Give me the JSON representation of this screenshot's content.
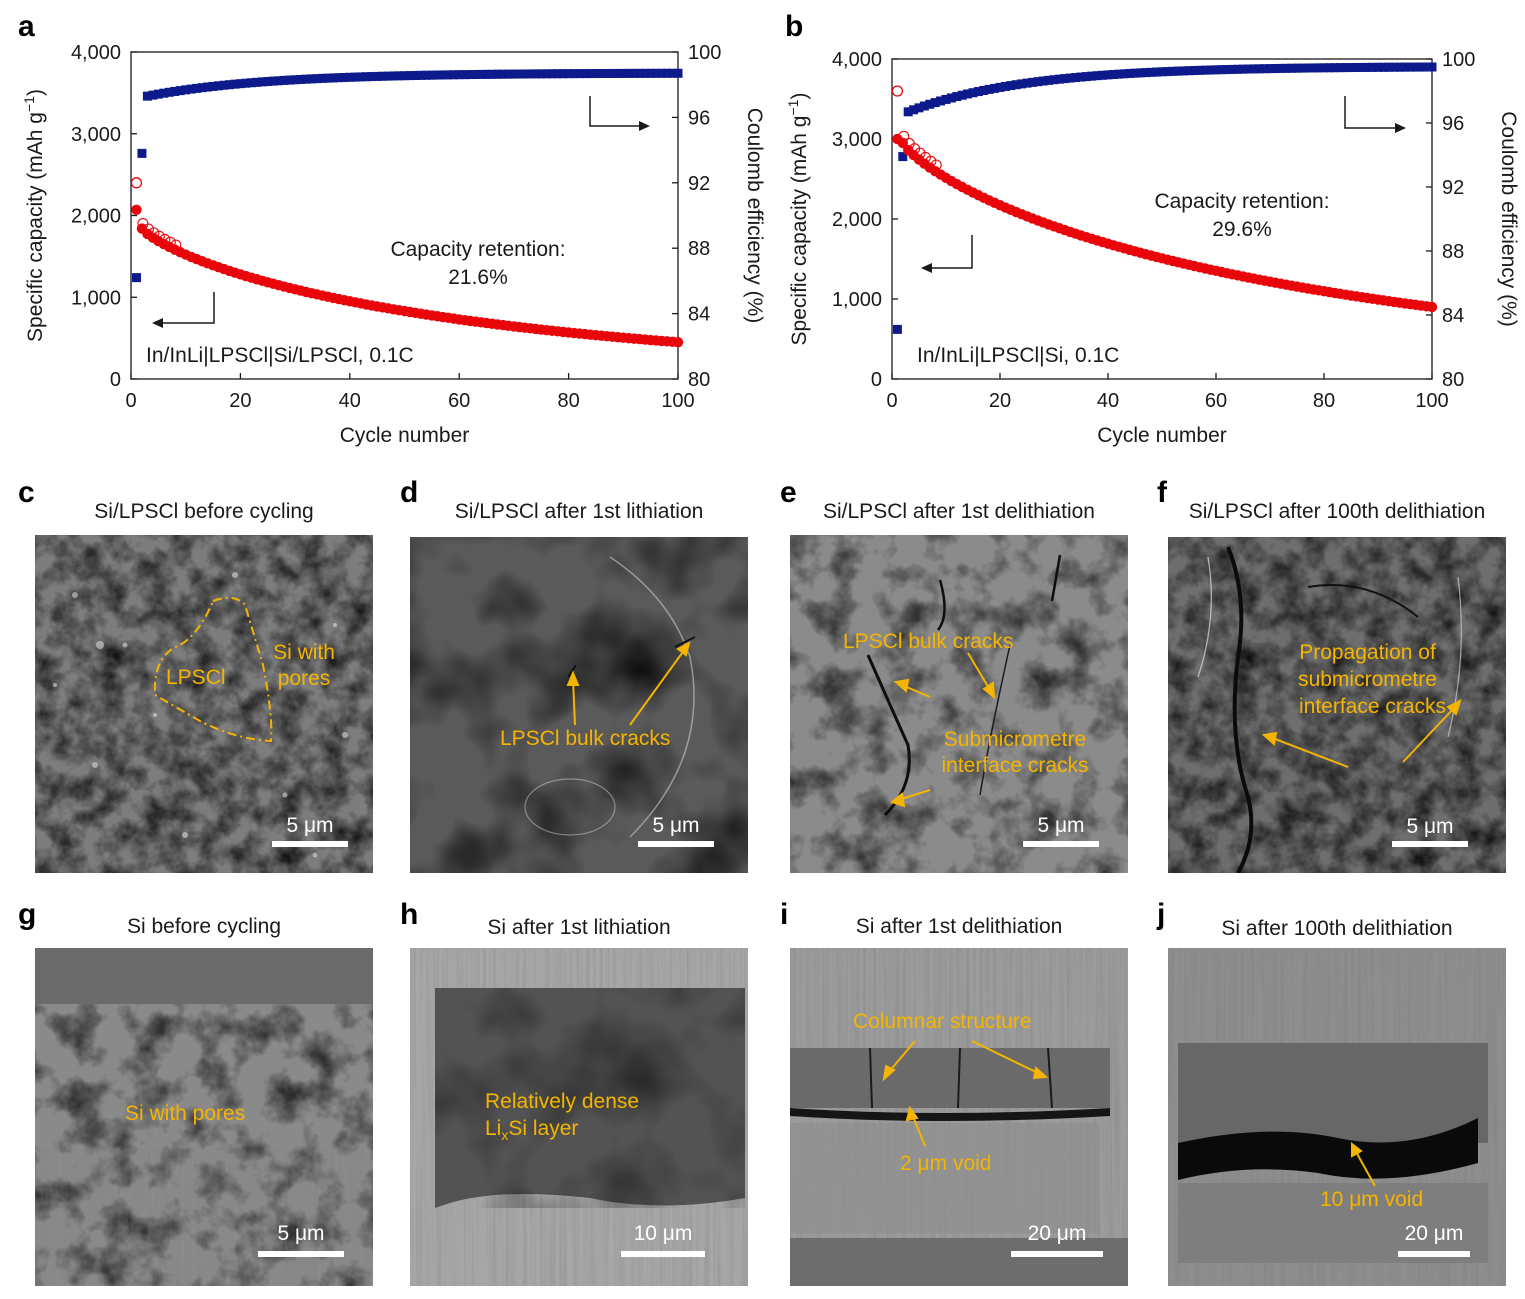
{
  "colors": {
    "capacity_series": "#e8060b",
    "efficiency_series": "#0d1a8c",
    "annotation": "#f5b400",
    "scale_bar": "#ffffff"
  },
  "chart_data": [
    {
      "panel": "a",
      "type": "scatter",
      "xlabel": "Cycle number",
      "ylabel_left": "Specific capacity (mAh g",
      "ylabel_left_sup": "−1",
      "ylabel_left_close": ")",
      "ylabel_right": "Coulomb efficiency (%)",
      "xlim": [
        0,
        100
      ],
      "ylim_left": [
        0,
        4000
      ],
      "ylim_right": [
        80,
        100
      ],
      "x_ticks": [
        "0",
        "20",
        "40",
        "60",
        "80",
        "100"
      ],
      "y_left_ticks": [
        "0",
        "1,000",
        "2,000",
        "3,000",
        "4,000"
      ],
      "y_right_ticks": [
        "80",
        "84",
        "88",
        "92",
        "96",
        "100"
      ],
      "annotation_line1": "Capacity retention:",
      "annotation_line2": "21.6%",
      "cell_label": "In/InLi|LPSCl|Si/LPSCl, 0.1C",
      "capacity": {
        "first_cycle_charge": 2400,
        "first_cycle_discharge": 2070,
        "cycle2": 1840,
        "cycle100": 450
      },
      "efficiency": {
        "cycle1": 86.2,
        "cycle2": 93.8,
        "cycle3": 97.3,
        "cycle100": 98.7
      }
    },
    {
      "panel": "b",
      "type": "scatter",
      "xlabel": "Cycle number",
      "ylabel_left": "Specific capacity (mAh g",
      "ylabel_left_sup": "−1",
      "ylabel_left_close": ")",
      "ylabel_right": "Coulomb efficiency (%)",
      "xlim": [
        0,
        100
      ],
      "ylim_left": [
        0,
        4000
      ],
      "ylim_right": [
        80,
        100
      ],
      "x_ticks": [
        "0",
        "20",
        "40",
        "60",
        "80",
        "100"
      ],
      "y_left_ticks": [
        "0",
        "1,000",
        "2,000",
        "3,000",
        "4,000"
      ],
      "y_right_ticks": [
        "80",
        "84",
        "88",
        "92",
        "96",
        "100"
      ],
      "annotation_line1": "Capacity retention:",
      "annotation_line2": "29.6%",
      "cell_label": "In/InLi|LPSCl|Si, 0.1C",
      "capacity": {
        "first_cycle_charge": 3600,
        "first_cycle_discharge": 3000,
        "cycle2": 2950,
        "cycle100": 900
      },
      "efficiency": {
        "cycle1": 83.1,
        "cycle2": 93.9,
        "cycle3": 96.7,
        "cycle100": 99.5
      }
    }
  ],
  "panels": [
    {
      "label": "c",
      "title": "Si/LPSCl before cycling",
      "scale": "5 μm",
      "annotations": [
        "LPSCl",
        "Si with pores"
      ]
    },
    {
      "label": "d",
      "title": "Si/LPSCl after 1st lithiation",
      "scale": "5 μm",
      "annotations": [
        "LPSCl bulk cracks"
      ]
    },
    {
      "label": "e",
      "title": "Si/LPSCl after 1st delithiation",
      "scale": "5 μm",
      "annotations": [
        "LPSCl bulk cracks",
        "Submicrometre",
        "interface cracks"
      ]
    },
    {
      "label": "f",
      "title": "Si/LPSCl after 100th delithiation",
      "scale": "5 μm",
      "annotations": [
        "Propagation of",
        "submicrometre",
        "interface cracks"
      ]
    },
    {
      "label": "g",
      "title": "Si before cycling",
      "scale": "5 μm",
      "annotations": [
        "Si with pores"
      ]
    },
    {
      "label": "h",
      "title": "Si after 1st lithiation",
      "scale": "10 μm",
      "annotations": [
        "Relatively dense",
        "Li",
        "x",
        "Si layer"
      ]
    },
    {
      "label": "i",
      "title": "Si after 1st delithiation",
      "scale": "20 μm",
      "annotations": [
        "Columnar structure",
        "2 μm void"
      ]
    },
    {
      "label": "j",
      "title": "Si after 100th delithiation",
      "scale": "20 μm",
      "annotations": [
        "10 μm void"
      ]
    }
  ]
}
